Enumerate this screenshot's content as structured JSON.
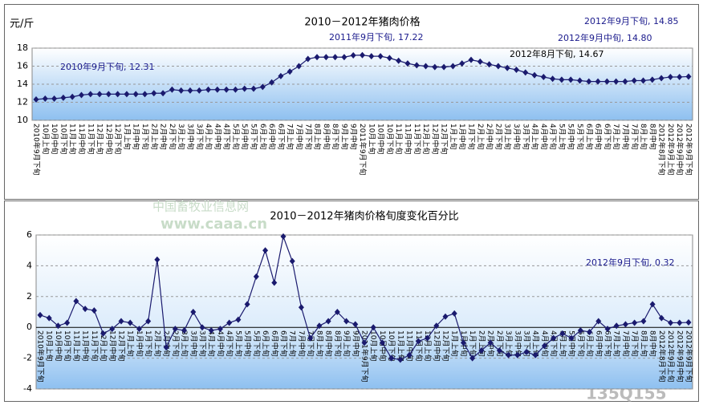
{
  "watermarks": [
    "中国畜牧业信息网",
    "www.caaa.cn",
    "135Q155"
  ],
  "chart_data": [
    {
      "type": "line",
      "title": "2010－2012年猪肉价格",
      "y_label": "元/斤",
      "categories": [
        "2010年9月下旬",
        "10月上旬",
        "10月中旬",
        "10月下旬",
        "11月上旬",
        "11月中旬",
        "11月下旬",
        "12月上旬",
        "12月中旬",
        "12月下旬",
        "1月上旬",
        "1月中旬",
        "1月下旬",
        "2月上旬",
        "2月中旬",
        "2月下旬",
        "3月上旬",
        "3月中旬",
        "3月下旬",
        "4月上旬",
        "4月中旬",
        "4月下旬",
        "5月上旬",
        "5月中旬",
        "5月下旬",
        "6月上旬",
        "6月中旬",
        "6月下旬",
        "7月上旬",
        "7月中旬",
        "7月下旬",
        "8月上旬",
        "8月中旬",
        "8月下旬",
        "9月上旬",
        "9月中旬",
        "2011年9月下旬",
        "10月上旬",
        "10月中旬",
        "10月下旬",
        "11月上旬",
        "11月中旬",
        "11月下旬",
        "12月上旬",
        "12月中旬",
        "12月下旬",
        "1月上旬",
        "1月中旬",
        "1月下旬",
        "2月上旬",
        "2月中旬",
        "2月下旬",
        "3月上旬",
        "3月中旬",
        "3月下旬",
        "4月上旬",
        "4月中旬",
        "4月下旬",
        "5月上旬",
        "5月中旬",
        "5月下旬",
        "6月上旬",
        "6月中旬",
        "6月下旬",
        "7月上旬",
        "7月中旬",
        "7月下旬",
        "8月上旬",
        "8月中旬",
        "2012年8月下旬",
        "2012年9月上旬",
        "2012年9月中旬",
        "2012年9月下旬"
      ],
      "series": [
        {
          "color": "#1a1a6e",
          "values": [
            12.31,
            12.4,
            12.4,
            12.5,
            12.6,
            12.8,
            12.9,
            12.9,
            12.9,
            12.9,
            12.9,
            12.9,
            12.9,
            13.0,
            13.0,
            13.4,
            13.3,
            13.3,
            13.3,
            13.4,
            13.4,
            13.4,
            13.4,
            13.5,
            13.5,
            13.7,
            14.2,
            14.9,
            15.4,
            16.0,
            16.8,
            17.0,
            17.0,
            17.0,
            17.0,
            17.2,
            17.22,
            17.1,
            17.1,
            16.9,
            16.6,
            16.3,
            16.1,
            16.0,
            15.9,
            15.9,
            16.0,
            16.3,
            16.7,
            16.5,
            16.2,
            16.0,
            15.8,
            15.6,
            15.3,
            15.0,
            14.8,
            14.6,
            14.5,
            14.5,
            14.4,
            14.3,
            14.3,
            14.3,
            14.3,
            14.3,
            14.4,
            14.4,
            14.5,
            14.67,
            14.8,
            14.8,
            14.85
          ]
        }
      ],
      "ylim": [
        10,
        18
      ],
      "yticks": [
        10,
        12,
        14,
        16,
        18
      ],
      "grid": true,
      "annotations": [
        "2010年9月下旬, 12.31",
        "2011年9月下旬, 17.22",
        "2012年8月下旬, 14.67",
        "2012年9月中旬, 14.80",
        "2012年9月下旬, 14.85"
      ]
    },
    {
      "type": "line",
      "title": "2010－2012年猪肉价格旬度变化百分比",
      "categories": [
        "2010年9月下旬",
        "10月上旬",
        "10月中旬",
        "10月下旬",
        "11月上旬",
        "11月中旬",
        "11月下旬",
        "12月上旬",
        "12月中旬",
        "12月下旬",
        "1月上旬",
        "1月中旬",
        "1月下旬",
        "2月上旬",
        "2月中旬",
        "2月下旬",
        "3月上旬",
        "3月中旬",
        "3月下旬",
        "4月上旬",
        "4月中旬",
        "4月下旬",
        "5月上旬",
        "5月中旬",
        "5月下旬",
        "6月上旬",
        "6月中旬",
        "6月下旬",
        "7月上旬",
        "7月中旬",
        "7月下旬",
        "8月上旬",
        "8月中旬",
        "8月下旬",
        "9月上旬",
        "9月中旬",
        "2011年9月下旬",
        "10月上旬",
        "10月中旬",
        "10月下旬",
        "11月上旬",
        "11月中旬",
        "11月下旬",
        "12月上旬",
        "12月中旬",
        "12月下旬",
        "1月上旬",
        "1月中旬",
        "1月下旬",
        "2月上旬",
        "2月中旬",
        "2月下旬",
        "3月上旬",
        "3月中旬",
        "3月下旬",
        "4月上旬",
        "4月中旬",
        "4月下旬",
        "5月上旬",
        "5月中旬",
        "5月下旬",
        "6月上旬",
        "6月中旬",
        "6月下旬",
        "7月上旬",
        "7月中旬",
        "7月下旬",
        "8月上旬",
        "8月中旬",
        "2012年8月下旬",
        "2012年9月上旬",
        "2012年9月中旬",
        "2012年9月下旬"
      ],
      "series": [
        {
          "color": "#1a1a6e",
          "values": [
            0.8,
            0.6,
            0.1,
            0.3,
            1.7,
            1.2,
            1.1,
            -0.4,
            -0.1,
            0.4,
            0.3,
            -0.1,
            0.4,
            4.4,
            -1.3,
            -0.1,
            -0.2,
            1.0,
            0.0,
            -0.2,
            -0.1,
            0.3,
            0.5,
            1.5,
            3.3,
            5.0,
            2.9,
            5.9,
            4.3,
            1.3,
            -0.7,
            0.1,
            0.4,
            1.0,
            0.4,
            0.2,
            -1.0,
            0.0,
            -1.0,
            -2.0,
            -2.1,
            -1.8,
            -0.9,
            -0.7,
            0.1,
            0.7,
            0.9,
            -1.0,
            -2.0,
            -1.5,
            -1.0,
            -1.5,
            -1.8,
            -1.8,
            -1.6,
            -1.8,
            -1.2,
            -0.7,
            -0.4,
            -0.7,
            -0.2,
            -0.3,
            0.4,
            -0.1,
            0.1,
            0.2,
            0.3,
            0.4,
            1.5,
            0.6,
            0.3,
            0.3,
            0.32
          ]
        }
      ],
      "ylim": [
        -4,
        6
      ],
      "yticks": [
        -4,
        -2,
        0,
        2,
        4,
        6
      ],
      "grid": true,
      "annotations": [
        "2012年9月下旬, 0.32"
      ]
    }
  ]
}
